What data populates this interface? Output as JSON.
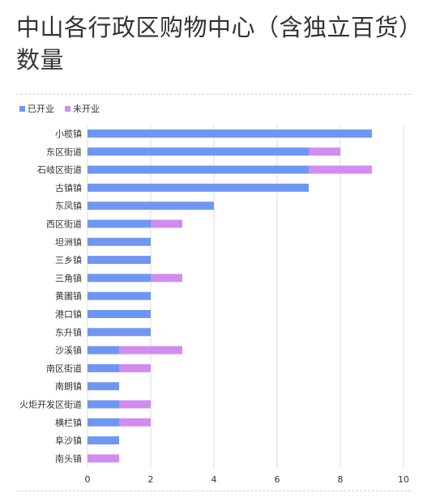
{
  "title": "中山各行政区购物中心（含独立百货）数量",
  "colors": {
    "open": "#6f97f2",
    "closed": "#d18cf0",
    "grid": "#dddddd",
    "text": "#333333"
  },
  "chart_data": {
    "type": "bar",
    "orientation": "horizontal",
    "stacked": true,
    "categories": [
      "小榄镇",
      "东区街道",
      "石岐区街道",
      "古镇镇",
      "东凤镇",
      "西区街道",
      "坦洲镇",
      "三乡镇",
      "三角镇",
      "黄圃镇",
      "港口镇",
      "东升镇",
      "沙溪镇",
      "南区街道",
      "南朗镇",
      "火炬开发区街道",
      "横栏镇",
      "阜沙镇",
      "南头镇"
    ],
    "series": [
      {
        "name": "已开业",
        "values": [
          9,
          7,
          7,
          7,
          4,
          2,
          2,
          2,
          2,
          2,
          2,
          2,
          1,
          1,
          1,
          1,
          1,
          1,
          0
        ]
      },
      {
        "name": "未开业",
        "values": [
          0,
          1,
          2,
          0,
          0,
          1,
          0,
          0,
          1,
          0,
          0,
          0,
          2,
          1,
          0,
          1,
          1,
          0,
          1
        ]
      }
    ],
    "xlim": [
      0,
      10
    ],
    "xticks": [
      "0",
      "2",
      "4",
      "6",
      "8",
      "10"
    ],
    "legend_position": "top-left",
    "grid": true
  }
}
